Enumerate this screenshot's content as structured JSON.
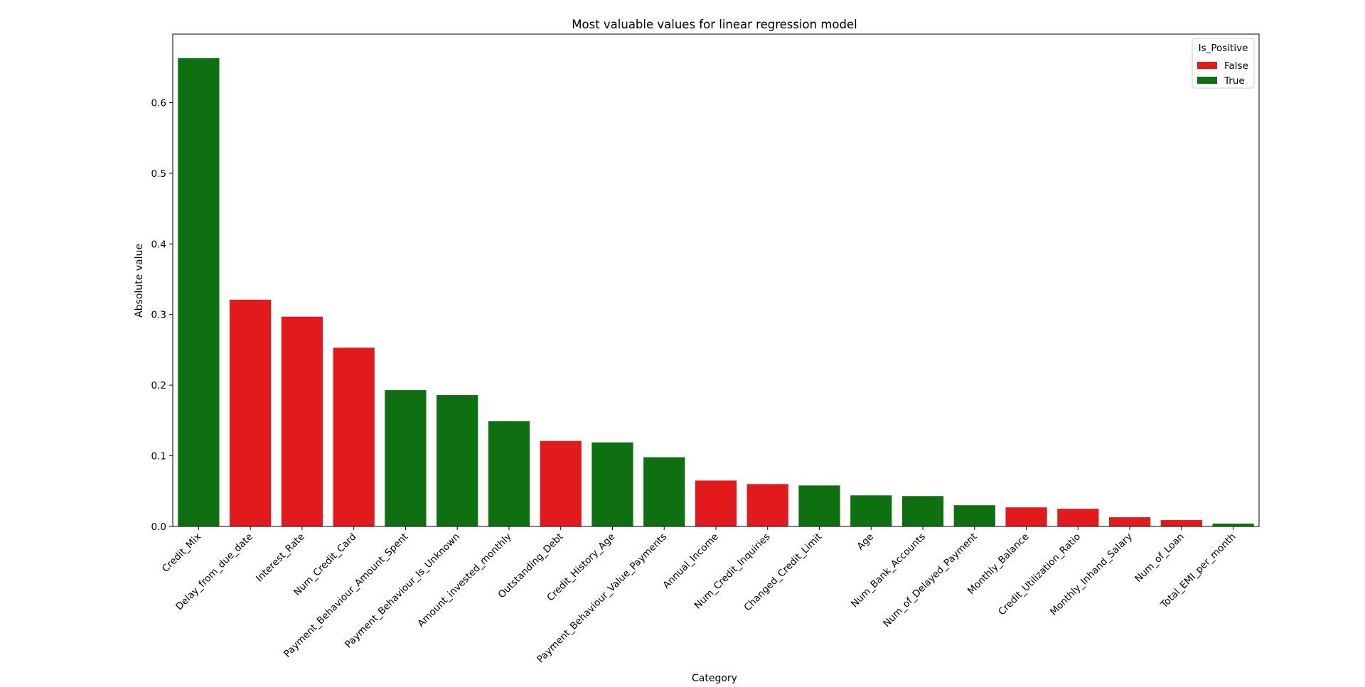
{
  "chart_data": {
    "type": "bar",
    "title": "Most valuable values for linear regression model",
    "xlabel": "Category",
    "ylabel": "Absolute value",
    "ylim": [
      0,
      0.697
    ],
    "yticks": [
      0.0,
      0.1,
      0.2,
      0.3,
      0.4,
      0.5,
      0.6
    ],
    "grid": false,
    "legend": {
      "title": "Is_Positive",
      "placement": "top-right",
      "entries": [
        {
          "label": "False",
          "color": "#e31a1c"
        },
        {
          "label": "True",
          "color": "#0e7010"
        }
      ]
    },
    "categories": [
      "Credit_Mix",
      "Delay_from_due_date",
      "Interest_Rate",
      "Num_Credit_Card",
      "Payment_Behaviour_Amount_Spent",
      "Payment_Behaviour_Is_Unknown",
      "Amount_invested_monthly",
      "Outstanding_Debt",
      "Credit_History_Age",
      "Payment_Behaviour_Value_Payments",
      "Annual_Income",
      "Num_Credit_Inquiries",
      "Changed_Credit_Limit",
      "Age",
      "Num_Bank_Accounts",
      "Num_of_Delayed_Payment",
      "Monthly_Balance",
      "Credit_Utilization_Ratio",
      "Monthly_Inhand_Salary",
      "Num_of_Loan",
      "Total_EMI_per_month"
    ],
    "values": [
      0.663,
      0.321,
      0.297,
      0.253,
      0.193,
      0.186,
      0.149,
      0.121,
      0.119,
      0.098,
      0.065,
      0.06,
      0.058,
      0.044,
      0.043,
      0.03,
      0.027,
      0.025,
      0.013,
      0.009,
      0.004
    ],
    "is_positive": [
      true,
      false,
      false,
      false,
      true,
      true,
      true,
      false,
      true,
      true,
      false,
      false,
      true,
      true,
      true,
      true,
      false,
      false,
      false,
      false,
      true
    ]
  }
}
